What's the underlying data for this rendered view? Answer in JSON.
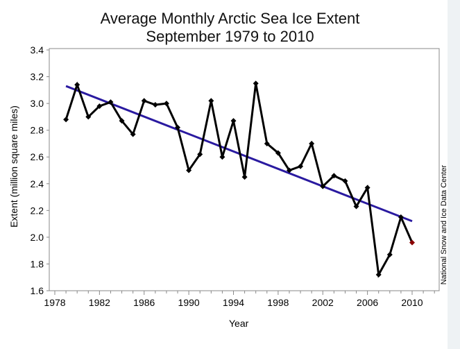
{
  "chart_data": {
    "type": "line",
    "title": "Average Monthly Arctic Sea Ice Extent",
    "subtitle": "September 1979 to 2010",
    "xlabel": "Year",
    "ylabel": "Extent (million square miles)",
    "credit": "National Snow and Ice Data Center",
    "xlim": [
      1977.5,
      2012.5
    ],
    "ylim": [
      1.6,
      3.4
    ],
    "x_ticks": [
      "1978",
      "1982",
      "1986",
      "1990",
      "1994",
      "1998",
      "2002",
      "2006",
      "2010"
    ],
    "y_ticks": [
      "1.6",
      "1.8",
      "2.0",
      "2.2",
      "2.4",
      "2.6",
      "2.8",
      "3.0",
      "3.2",
      "3.4"
    ],
    "grid": false,
    "series": [
      {
        "x": [
          1979,
          1980,
          1981,
          1982,
          1983,
          1984,
          1985,
          1986,
          1987,
          1988,
          1989,
          1990,
          1991,
          1992,
          1993,
          1994,
          1995,
          1996,
          1997,
          1998,
          1999,
          2000,
          2001,
          2002,
          2003,
          2004,
          2005,
          2006,
          2007,
          2008,
          2009,
          2010
        ],
        "y": [
          2.88,
          3.14,
          2.9,
          2.98,
          3.01,
          2.87,
          2.77,
          3.02,
          2.99,
          3.0,
          2.82,
          2.5,
          2.62,
          3.02,
          2.6,
          2.87,
          2.45,
          3.15,
          2.7,
          2.63,
          2.5,
          2.53,
          2.7,
          2.38,
          2.46,
          2.42,
          2.23,
          2.37,
          1.72,
          1.87,
          2.15,
          1.96
        ],
        "color": "#000000",
        "highlight_last_color": "#8b0000"
      },
      {
        "type": "trendline",
        "x": [
          1979,
          2010
        ],
        "y": [
          3.13,
          2.12
        ],
        "color": "#2a1aa0"
      }
    ]
  }
}
